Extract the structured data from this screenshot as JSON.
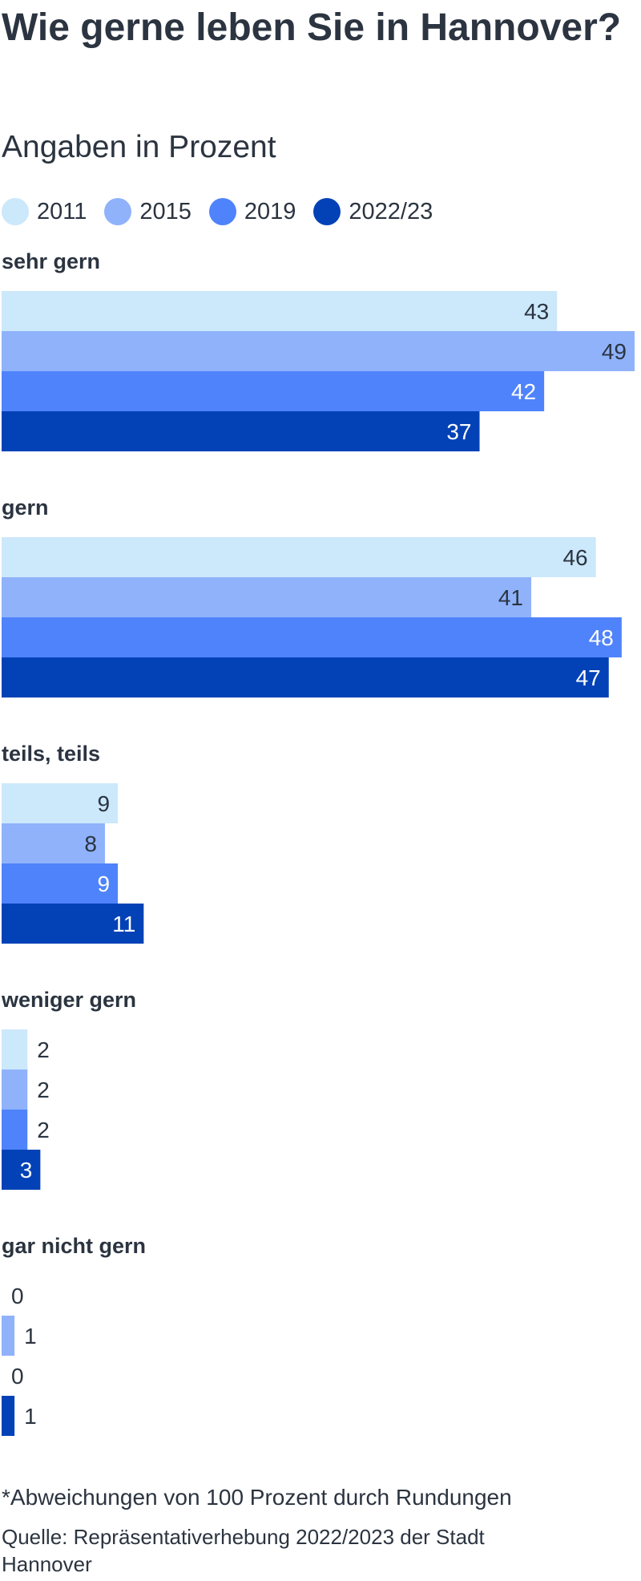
{
  "title": "Wie gerne leben Sie in Hannover?",
  "subtitle": "Angaben in Prozent",
  "footnote": "*Abweichungen von 100 Prozent durch Rundungen",
  "source": "Quelle: Repräsentativerhebung 2022/2023 der Stadt Hannover",
  "colors": {
    "2011": "#cce8fb",
    "2015": "#8fb2fb",
    "2019": "#4f83fb",
    "2022/23": "#0342b6"
  },
  "chart_data": {
    "type": "bar",
    "orientation": "horizontal",
    "categories": [
      "sehr gern",
      "gern",
      "teils, teils",
      "weniger gern",
      "gar nicht gern"
    ],
    "series": [
      {
        "name": "2011",
        "values": [
          43,
          46,
          9,
          2,
          0
        ]
      },
      {
        "name": "2015",
        "values": [
          49,
          41,
          8,
          2,
          1
        ]
      },
      {
        "name": "2019",
        "values": [
          42,
          48,
          9,
          2,
          0
        ]
      },
      {
        "name": "2022/23",
        "values": [
          37,
          47,
          11,
          3,
          1
        ]
      }
    ],
    "xlim": [
      0,
      49
    ],
    "legend": "top",
    "grid": false,
    "data_labels": true
  }
}
